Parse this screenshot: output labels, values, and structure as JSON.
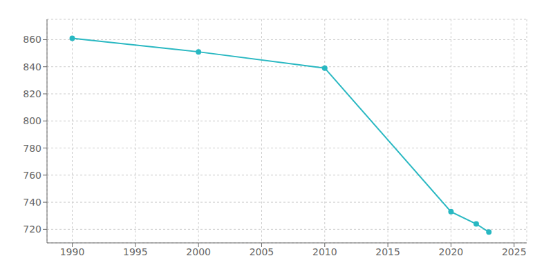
{
  "chart_data": {
    "type": "line",
    "x": [
      1990,
      2000,
      2010,
      2020,
      2022,
      2023
    ],
    "values": [
      861,
      851,
      839,
      733,
      724,
      718
    ],
    "color": "#29B8C2",
    "marker": "circle",
    "xlim": [
      1988,
      2026
    ],
    "ylim": [
      710,
      875
    ],
    "xticks": [
      1990,
      1995,
      2000,
      2005,
      2010,
      2015,
      2020,
      2025
    ],
    "yticks": [
      720,
      740,
      760,
      780,
      800,
      820,
      840,
      860
    ],
    "grid": true
  }
}
